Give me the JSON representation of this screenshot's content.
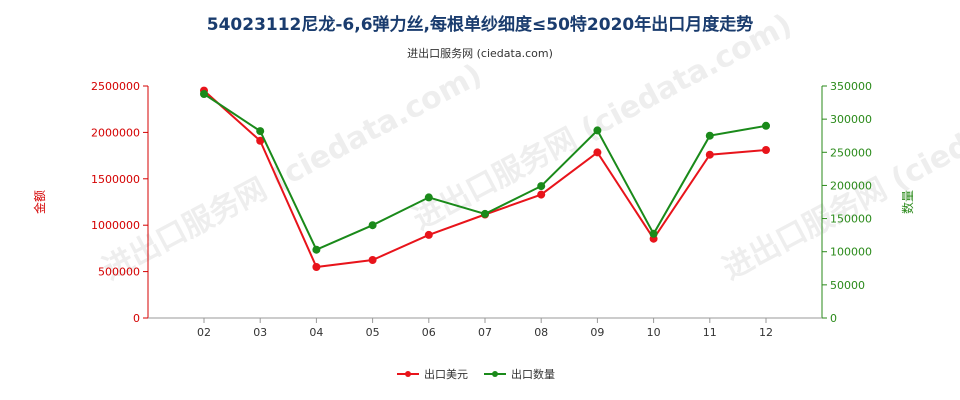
{
  "title": "54023112尼龙-6,6弹力丝,每根单纱细度≤50特2020年出口月度走势",
  "subtitle": "进出口服务网 (ciedata.com)",
  "watermark": "进出口服务网 (ciedata.com)",
  "colors": {
    "amount": "#e8141b",
    "quantity": "#1a8a1a",
    "left_axis": "#d40000",
    "right_axis": "#2a8a1a"
  },
  "chart_data": {
    "type": "line",
    "categories": [
      "02",
      "03",
      "04",
      "05",
      "06",
      "07",
      "08",
      "09",
      "10",
      "11",
      "12"
    ],
    "series": [
      {
        "name": "出口美元",
        "axis": "left",
        "values": [
          2450000,
          1910000,
          550000,
          625000,
          895000,
          1115000,
          1330000,
          1785000,
          855000,
          1760000,
          1810000
        ]
      },
      {
        "name": "出口数量",
        "axis": "right",
        "values": [
          338000,
          282000,
          103000,
          140000,
          182000,
          157000,
          199000,
          283000,
          127000,
          275000,
          290000
        ]
      }
    ],
    "y_left": {
      "label": "金额",
      "ylim": [
        0,
        2500000
      ],
      "ticks": [
        "0",
        "500000",
        "1000000",
        "1500000",
        "2000000",
        "2500000"
      ]
    },
    "y_right": {
      "label": "数量",
      "ylim": [
        0,
        350000
      ],
      "ticks": [
        "0",
        "50000",
        "100000",
        "150000",
        "200000",
        "250000",
        "300000",
        "350000"
      ]
    },
    "grid": false,
    "legend": "bottom-center"
  }
}
